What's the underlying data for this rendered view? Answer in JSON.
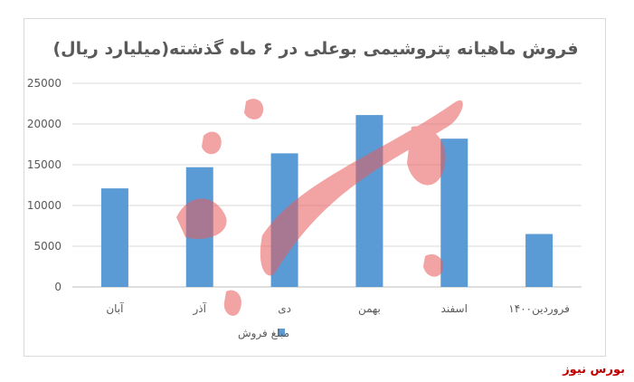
{
  "chart_data": {
    "type": "bar",
    "title": "فروش ماهیانه پتروشیمی بوعلی در ۶ ماه گذشته(میلیارد ریال)",
    "categories": [
      "آبان",
      "آذر",
      "دی",
      "بهمن",
      "اسفند",
      "فروردین۱۴۰۰"
    ],
    "series": [
      {
        "name": "مبلغ فروش",
        "values": [
          12100,
          14700,
          16400,
          21100,
          18200,
          6500
        ]
      }
    ],
    "ylim": [
      0,
      25000
    ],
    "yticks": [
      0,
      5000,
      10000,
      15000,
      20000,
      25000
    ],
    "grid": true,
    "legend": "bottom",
    "color": "#5b9bd5"
  },
  "watermark": {
    "text": "بورس نیوز",
    "color": "#c00000"
  }
}
